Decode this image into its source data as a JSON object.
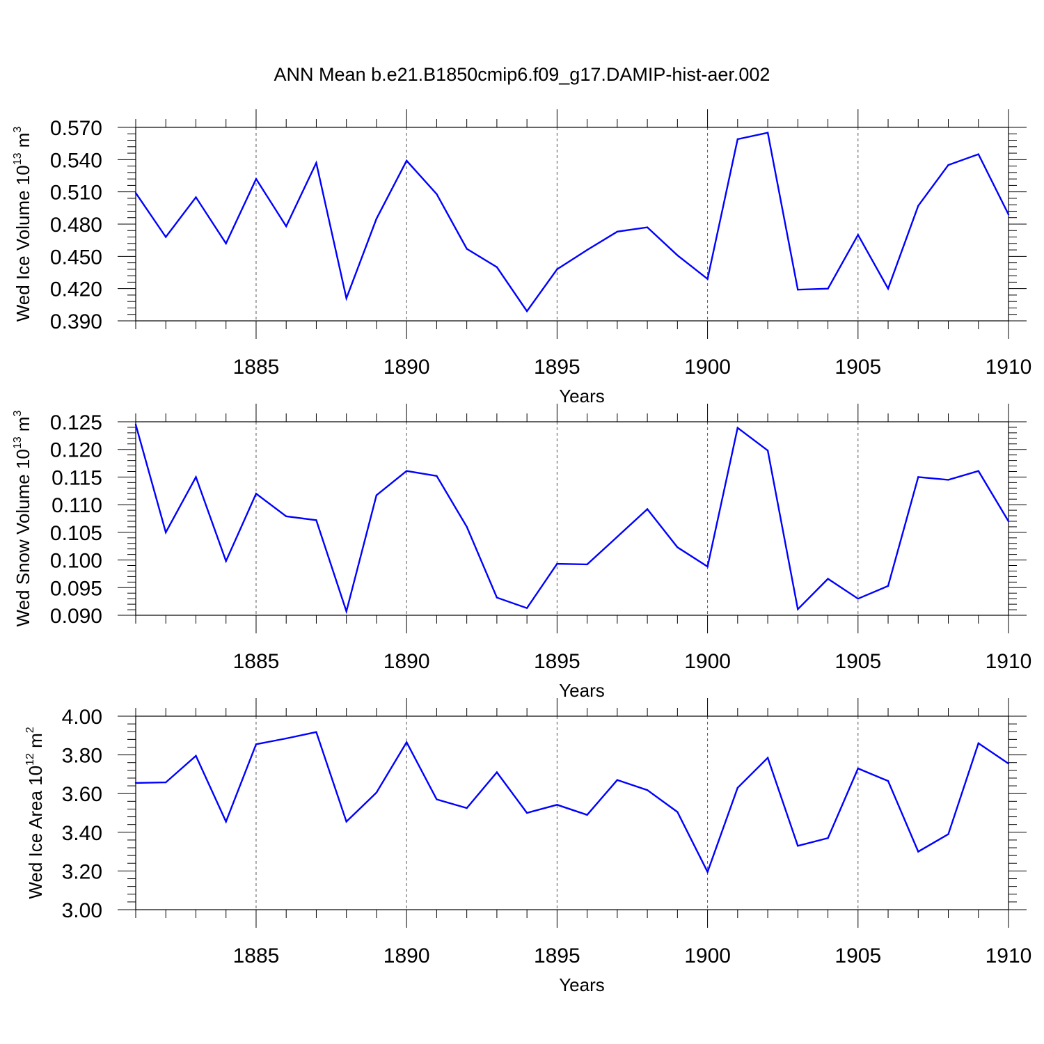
{
  "page": {
    "title": "ANN Mean b.e21.B1850cmip6.f09_g17.DAMIP-hist-aer.002"
  },
  "colors": {
    "line": "#0000ff",
    "axis": "#000000",
    "grid": "#555555"
  },
  "chart_data": [
    {
      "type": "line",
      "ylabel": "Wed Ice Volume 10",
      "ylabel_exp": "13",
      "ylabel_unit": " m",
      "ylabel_unit_exp": "3",
      "xlabel": "Years",
      "xlim": [
        1881,
        1910
      ],
      "ylim": [
        0.39,
        0.57
      ],
      "yticks": [
        0.39,
        0.42,
        0.45,
        0.48,
        0.51,
        0.54,
        0.57
      ],
      "ytick_labels": [
        "0.390",
        "0.420",
        "0.450",
        "0.480",
        "0.510",
        "0.540",
        "0.570"
      ],
      "xticks": [
        1885,
        1890,
        1895,
        1900,
        1905,
        1910
      ],
      "xtick_labels": [
        "1885",
        "1890",
        "1895",
        "1900",
        "1905",
        "1910"
      ],
      "grid": "vertical dashed at major x ticks",
      "x": [
        1881,
        1882,
        1883,
        1884,
        1885,
        1886,
        1887,
        1888,
        1889,
        1890,
        1891,
        1892,
        1893,
        1894,
        1895,
        1896,
        1897,
        1898,
        1899,
        1900,
        1901,
        1902,
        1903,
        1904,
        1905,
        1906,
        1907,
        1908,
        1909,
        1910
      ],
      "y": [
        0.509,
        0.468,
        0.505,
        0.462,
        0.522,
        0.478,
        0.537,
        0.411,
        0.485,
        0.539,
        0.508,
        0.457,
        0.44,
        0.399,
        0.438,
        0.456,
        0.473,
        0.477,
        0.451,
        0.429,
        0.559,
        0.565,
        0.419,
        0.42,
        0.47,
        0.42,
        0.497,
        0.535,
        0.545,
        0.489
      ]
    },
    {
      "type": "line",
      "ylabel": "Wed Snow Volume 10",
      "ylabel_exp": "13",
      "ylabel_unit": " m",
      "ylabel_unit_exp": "3",
      "xlabel": "Years",
      "xlim": [
        1881,
        1910
      ],
      "ylim": [
        0.09,
        0.125
      ],
      "yticks": [
        0.09,
        0.095,
        0.1,
        0.105,
        0.11,
        0.115,
        0.12,
        0.125
      ],
      "ytick_labels": [
        "0.090",
        "0.095",
        "0.100",
        "0.105",
        "0.110",
        "0.115",
        "0.120",
        "0.125"
      ],
      "xticks": [
        1885,
        1890,
        1895,
        1900,
        1905,
        1910
      ],
      "xtick_labels": [
        "1885",
        "1890",
        "1895",
        "1900",
        "1905",
        "1910"
      ],
      "grid": "vertical dashed at major x ticks",
      "x": [
        1881,
        1882,
        1883,
        1884,
        1885,
        1886,
        1887,
        1888,
        1889,
        1890,
        1891,
        1892,
        1893,
        1894,
        1895,
        1896,
        1897,
        1898,
        1899,
        1900,
        1901,
        1902,
        1903,
        1904,
        1905,
        1906,
        1907,
        1908,
        1909,
        1910
      ],
      "y": [
        0.1245,
        0.105,
        0.115,
        0.0998,
        0.112,
        0.1079,
        0.1072,
        0.0907,
        0.1117,
        0.1161,
        0.1152,
        0.106,
        0.0932,
        0.0913,
        0.0993,
        0.0992,
        0.1042,
        0.1092,
        0.1023,
        0.0988,
        0.1239,
        0.1198,
        0.0911,
        0.0966,
        0.093,
        0.0953,
        0.115,
        0.1145,
        0.1161,
        0.107
      ]
    },
    {
      "type": "line",
      "ylabel": "Wed Ice Area 10",
      "ylabel_exp": "12",
      "ylabel_unit": " m",
      "ylabel_unit_exp": "2",
      "xlabel": "Years",
      "xlim": [
        1881,
        1910
      ],
      "ylim": [
        3.0,
        4.0
      ],
      "yticks": [
        3.0,
        3.2,
        3.4,
        3.6,
        3.8,
        4.0
      ],
      "ytick_labels": [
        "3.00",
        "3.20",
        "3.40",
        "3.60",
        "3.80",
        "4.00"
      ],
      "xticks": [
        1885,
        1890,
        1895,
        1900,
        1905,
        1910
      ],
      "xtick_labels": [
        "1885",
        "1890",
        "1895",
        "1900",
        "1905",
        "1910"
      ],
      "grid": "vertical dashed at major x ticks",
      "x": [
        1881,
        1882,
        1883,
        1884,
        1885,
        1886,
        1887,
        1888,
        1889,
        1890,
        1891,
        1892,
        1893,
        1894,
        1895,
        1896,
        1897,
        1898,
        1899,
        1900,
        1901,
        1902,
        1903,
        1904,
        1905,
        1906,
        1907,
        1908,
        1909,
        1910
      ],
      "y": [
        3.655,
        3.658,
        3.795,
        3.455,
        3.855,
        3.885,
        3.918,
        3.455,
        3.605,
        3.865,
        3.57,
        3.525,
        3.71,
        3.5,
        3.542,
        3.49,
        3.67,
        3.618,
        3.505,
        3.195,
        3.63,
        3.785,
        3.33,
        3.37,
        3.73,
        3.665,
        3.3,
        3.39,
        3.86,
        3.755
      ]
    }
  ]
}
